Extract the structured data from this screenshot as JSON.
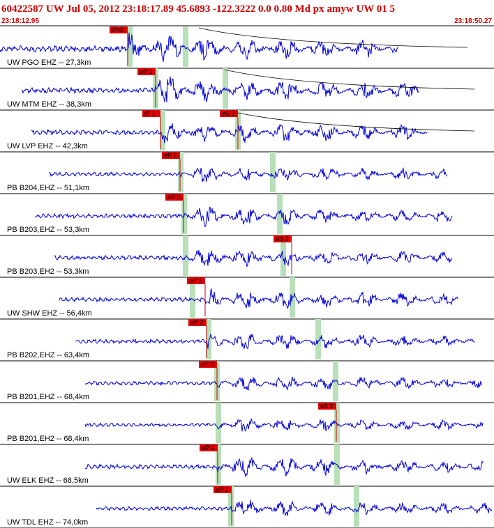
{
  "header": {
    "title": "60422587 UW Jul 05, 2012 23:18:17.89   45.6893 -122.3222  0.0 0.80 Md px amyw UW 01   5",
    "start_time": "23:18:12.95",
    "end_time": "23:18:50.27"
  },
  "traces": [
    {
      "label": "UW PGO EHZ -- 27,3km",
      "picks": [
        "iPd0"
      ]
    },
    {
      "label": "UW MTM EHZ -- 38,3km",
      "picks": [
        "eP 2"
      ]
    },
    {
      "label": "UW LVP EHZ -- 42,3km",
      "picks": [
        "iP 1",
        "eS 2"
      ]
    },
    {
      "label": "PB B204,EHZ -- 51,1km",
      "picks": [
        "eP 2"
      ]
    },
    {
      "label": "PB B203,EHZ -- 53,3km",
      "picks": [
        "eP 2"
      ]
    },
    {
      "label": "PB B203,EH2 -- 53,3km",
      "picks": [
        "eS 2"
      ]
    },
    {
      "label": "UW SHW EHZ -- 56,4km",
      "picks": [
        "eP 2"
      ]
    },
    {
      "label": "PB B202,EHZ -- 63,4km",
      "picks": [
        "eP 2"
      ]
    },
    {
      "label": "PB B201,EHZ -- 68,4km",
      "picks": [
        "eP 2"
      ]
    },
    {
      "label": "PB B201,EH2 -- 68,4km",
      "picks": [
        "eS 2"
      ]
    },
    {
      "label": "UW ELK EHZ -- 68,5km",
      "picks": [
        "eP 2"
      ]
    },
    {
      "label": "UW TDL EHZ -- 74,0km",
      "picks": [
        "eP 2"
      ]
    }
  ]
}
